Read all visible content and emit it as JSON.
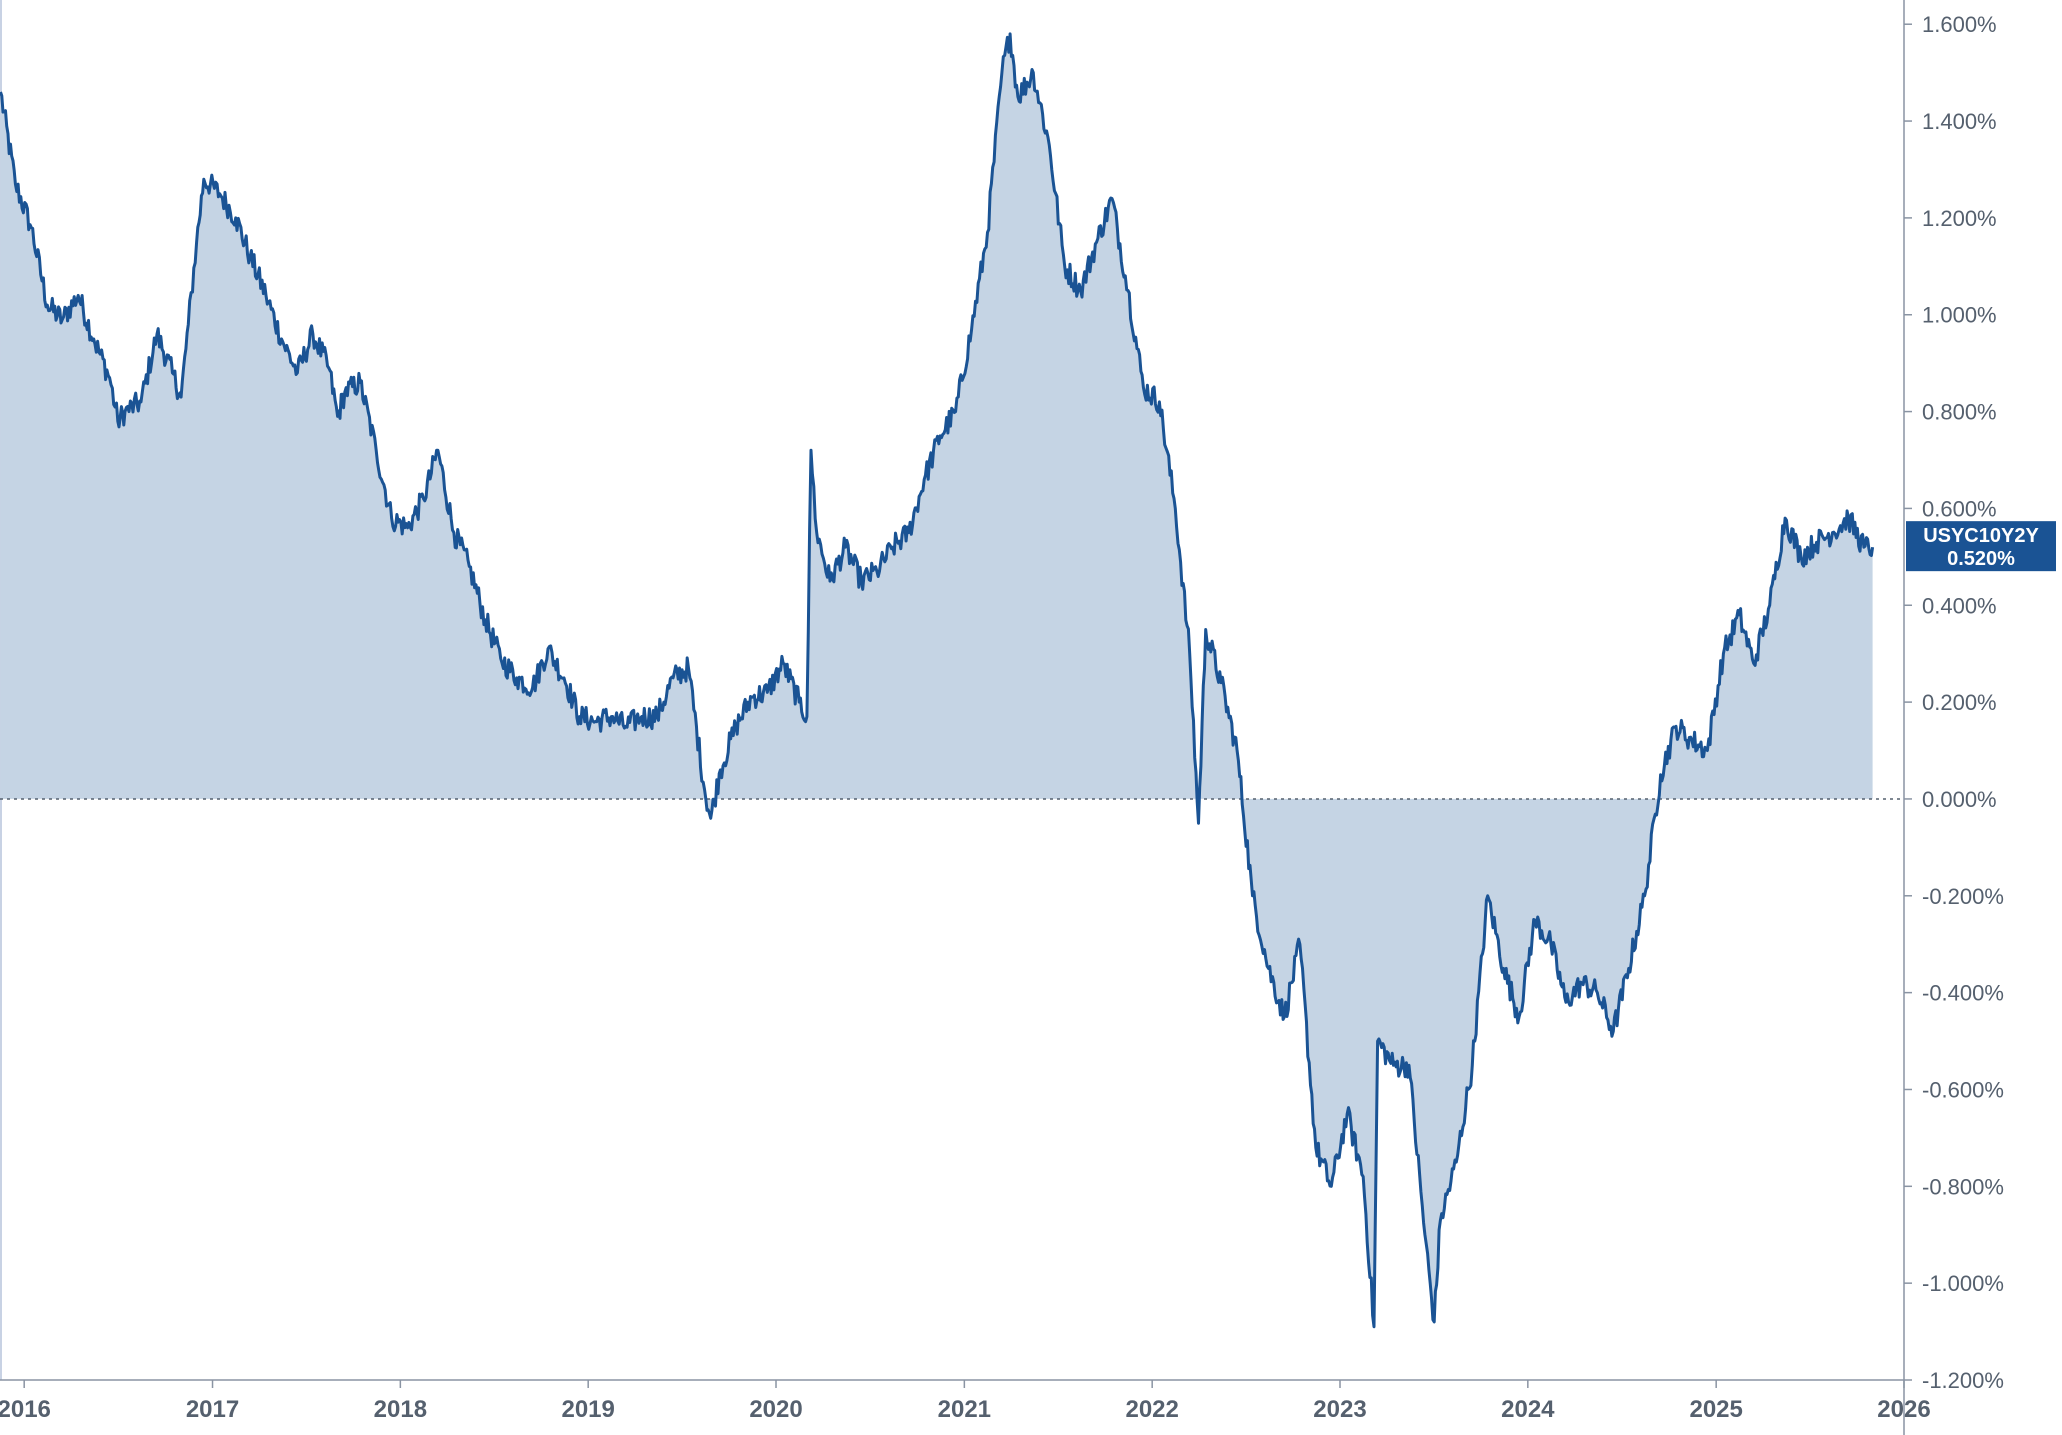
{
  "chart_data": {
    "type": "area",
    "series": [
      {
        "name": "USYC10Y2Y",
        "x": [
          "2015-11-16",
          "2015-12-15",
          "2016-01-15",
          "2016-02-15",
          "2016-03-15",
          "2016-04-15",
          "2016-05-15",
          "2016-06-15",
          "2016-07-01",
          "2016-07-15",
          "2016-08-15",
          "2016-09-15",
          "2016-10-15",
          "2016-11-01",
          "2016-11-15",
          "2016-12-01",
          "2016-12-15",
          "2017-01-15",
          "2017-02-15",
          "2017-03-15",
          "2017-04-15",
          "2017-05-15",
          "2017-06-15",
          "2017-07-15",
          "2017-08-15",
          "2017-09-01",
          "2017-09-15",
          "2017-10-15",
          "2017-11-15",
          "2017-12-15",
          "2018-01-15",
          "2018-02-15",
          "2018-03-15",
          "2018-04-15",
          "2018-05-15",
          "2018-06-15",
          "2018-07-15",
          "2018-08-15",
          "2018-09-15",
          "2018-10-15",
          "2018-11-15",
          "2018-12-15",
          "2019-01-15",
          "2019-02-15",
          "2019-03-15",
          "2019-04-15",
          "2019-05-15",
          "2019-06-15",
          "2019-07-15",
          "2019-08-15",
          "2019-08-27",
          "2019-09-15",
          "2019-10-15",
          "2019-11-15",
          "2019-12-15",
          "2020-01-15",
          "2020-02-15",
          "2020-03-01",
          "2020-03-09",
          "2020-03-20",
          "2020-04-15",
          "2020-05-15",
          "2020-06-15",
          "2020-07-15",
          "2020-08-15",
          "2020-09-15",
          "2020-10-15",
          "2020-11-15",
          "2020-12-15",
          "2021-01-15",
          "2021-02-15",
          "2021-03-15",
          "2021-03-31",
          "2021-04-15",
          "2021-05-15",
          "2021-06-15",
          "2021-07-15",
          "2021-08-15",
          "2021-09-15",
          "2021-10-15",
          "2021-11-15",
          "2021-12-15",
          "2022-01-15",
          "2022-02-15",
          "2022-03-15",
          "2022-04-01",
          "2022-04-15",
          "2022-05-15",
          "2022-06-15",
          "2022-07-15",
          "2022-08-15",
          "2022-09-15",
          "2022-10-15",
          "2022-11-15",
          "2022-12-15",
          "2023-01-15",
          "2023-02-15",
          "2023-03-08",
          "2023-03-15",
          "2023-04-15",
          "2023-05-15",
          "2023-06-15",
          "2023-07-03",
          "2023-07-15",
          "2023-08-15",
          "2023-09-15",
          "2023-10-15",
          "2023-11-15",
          "2023-12-15",
          "2024-01-15",
          "2024-02-15",
          "2024-03-15",
          "2024-04-15",
          "2024-05-15",
          "2024-06-15",
          "2024-07-15",
          "2024-08-15",
          "2024-09-15",
          "2024-10-15",
          "2024-11-15",
          "2024-12-15",
          "2025-01-15",
          "2025-02-15",
          "2025-03-15",
          "2025-04-15",
          "2025-05-15",
          "2025-06-15",
          "2025-07-15",
          "2025-08-15",
          "2025-09-15",
          "2025-10-15",
          "2025-11-01"
        ],
        "values": [
          1.46,
          1.27,
          1.18,
          1.02,
          0.99,
          1.04,
          0.95,
          0.87,
          0.78,
          0.8,
          0.82,
          0.96,
          0.88,
          0.83,
          0.98,
          1.15,
          1.28,
          1.25,
          1.2,
          1.12,
          1.04,
          0.95,
          0.88,
          0.96,
          0.89,
          0.79,
          0.84,
          0.86,
          0.72,
          0.58,
          0.56,
          0.62,
          0.72,
          0.55,
          0.48,
          0.37,
          0.29,
          0.25,
          0.23,
          0.31,
          0.25,
          0.17,
          0.16,
          0.17,
          0.15,
          0.17,
          0.17,
          0.25,
          0.27,
          0.02,
          -0.04,
          0.06,
          0.15,
          0.21,
          0.22,
          0.28,
          0.2,
          0.17,
          0.72,
          0.55,
          0.45,
          0.52,
          0.45,
          0.47,
          0.52,
          0.55,
          0.66,
          0.75,
          0.8,
          0.97,
          1.17,
          1.5,
          1.58,
          1.45,
          1.5,
          1.35,
          1.1,
          1.05,
          1.15,
          1.24,
          1.05,
          0.85,
          0.82,
          0.6,
          0.3,
          -0.05,
          0.35,
          0.24,
          0.1,
          -0.2,
          -0.35,
          -0.45,
          -0.3,
          -0.72,
          -0.8,
          -0.65,
          -0.78,
          -1.09,
          -0.5,
          -0.55,
          -0.55,
          -0.9,
          -1.08,
          -0.87,
          -0.75,
          -0.55,
          -0.2,
          -0.35,
          -0.45,
          -0.25,
          -0.3,
          -0.42,
          -0.38,
          -0.4,
          -0.48,
          -0.35,
          -0.2,
          0.05,
          0.15,
          0.12,
          0.1,
          0.3,
          0.38,
          0.28,
          0.4,
          0.58,
          0.5,
          0.53,
          0.55,
          0.58,
          0.52,
          0.52
        ]
      }
    ],
    "yticks": [
      "1.600%",
      "1.400%",
      "1.200%",
      "1.000%",
      "0.800%",
      "0.600%",
      "0.400%",
      "0.200%",
      "0.000%",
      "-0.200%",
      "-0.400%",
      "-0.600%",
      "-0.800%",
      "-1.000%",
      "-1.200%"
    ],
    "ytick_values": [
      1.6,
      1.4,
      1.2,
      1.0,
      0.8,
      0.6,
      0.4,
      0.2,
      0.0,
      -0.2,
      -0.4,
      -0.6,
      -0.8,
      -1.0,
      -1.2
    ],
    "xticks": [
      "2016",
      "2017",
      "2018",
      "2019",
      "2020",
      "2021",
      "2022",
      "2023",
      "2024",
      "2025",
      "2026"
    ],
    "xtick_values": [
      "2016-01-01",
      "2017-01-01",
      "2018-01-01",
      "2019-01-01",
      "2020-01-01",
      "2021-01-01",
      "2022-01-01",
      "2023-01-01",
      "2024-01-01",
      "2025-01-01",
      "2026-01-01"
    ],
    "ylim": [
      -1.2,
      1.65
    ],
    "xlim": [
      "2015-11-15",
      "2026-01-01"
    ],
    "zero_line": "dotted",
    "grid": false,
    "last_value_tag": {
      "label": "USYC10Y2Y",
      "value": "0.520%"
    },
    "colors": {
      "line": "#1a5394",
      "fill": "#c5d4e4",
      "tag": "#1a5394",
      "text": "#55606e"
    }
  }
}
